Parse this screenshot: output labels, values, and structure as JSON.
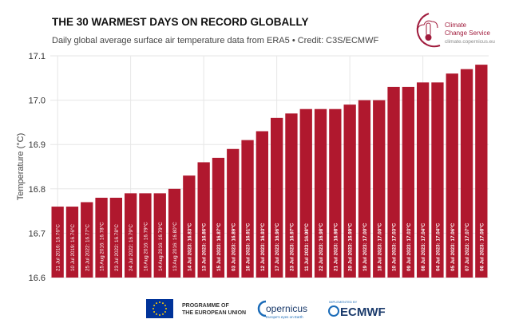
{
  "header": {
    "title": "THE 30 WARMEST DAYS ON RECORD GLOBALLY",
    "subtitle": "Daily global average surface air temperature data from ERA5 • Credit: C3S/ECMWF"
  },
  "logo": {
    "line1": "Climate",
    "line2": "Change Service",
    "url": "climate.copernicus.eu"
  },
  "footer": {
    "eu_line1": "PROGRAMME OF",
    "eu_line2": "THE EUROPEAN UNION",
    "copernicus": "opernicus",
    "copernicus_tag": "Europe's eyes on Earth",
    "ecmwf_tag": "IMPLEMENTED BY",
    "ecmwf": "ECMWF"
  },
  "colors": {
    "bar": "#b0182e",
    "grid": "#e6e6e6"
  },
  "chart_data": {
    "type": "bar",
    "title": "THE 30 WARMEST DAYS ON RECORD GLOBALLY",
    "ylabel": "Temperature (°C)",
    "ylim": [
      16.6,
      17.1
    ],
    "yticks": [
      "16.6",
      "16.7",
      "16.8",
      "16.9",
      "17.0",
      "17.1"
    ],
    "grid": true,
    "categories": [
      "21 Jul 2016",
      "10 Jul 2019",
      "25 Jul 2022",
      "15 Aug 2016",
      "23 Jul 2022",
      "24 Jul 2022",
      "16 Aug 2016",
      "14 Aug 2016",
      "13 Aug 2016",
      "14 Jul 2023",
      "13 Jul 2023",
      "15 Jul 2023",
      "03 Jul 2023",
      "16 Jul 2023",
      "12 Jul 2023",
      "17 Jul 2023",
      "23 Jul 2023",
      "11 Jul 2023",
      "22 Jul 2023",
      "21 Jul 2023",
      "20 Jul 2023",
      "19 Jul 2023",
      "18 Jul 2023",
      "10 Jul 2023",
      "09 Jul 2023",
      "08 Jul 2023",
      "04 Jul 2023",
      "05 Jul 2023",
      "07 Jul 2023",
      "06 Jul 2023"
    ],
    "values": [
      16.76,
      16.76,
      16.77,
      16.78,
      16.78,
      16.79,
      16.79,
      16.79,
      16.8,
      16.83,
      16.86,
      16.87,
      16.89,
      16.91,
      16.93,
      16.96,
      16.97,
      16.98,
      16.98,
      16.98,
      16.99,
      17.0,
      17.0,
      17.03,
      17.03,
      17.04,
      17.04,
      17.06,
      17.07,
      17.08
    ],
    "labels": [
      "21 Jul 2016: 16.76°C",
      "10 Jul 2019: 16.76°C",
      "25 Jul 2022: 16.77°C",
      "15 Aug 2016: 16.78°C",
      "23 Jul 2022: 16.78°C",
      "24 Jul 2022: 16.79°C",
      "16 Aug 2016: 16.79°C",
      "14 Aug 2016: 16.79°C",
      "13 Aug 2016: 16.80°C",
      "14 Jul 2023: 16.83°C",
      "13 Jul 2023: 16.86°C",
      "15 Jul 2023: 16.87°C",
      "03 Jul 2023: 16.89°C",
      "16 Jul 2023: 16.91°C",
      "12 Jul 2023: 16.93°C",
      "17 Jul 2023: 16.96°C",
      "23 Jul 2023: 16.97°C",
      "11 Jul 2023: 16.98°C",
      "22 Jul 2023: 16.98°C",
      "21 Jul 2023: 16.98°C",
      "20 Jul 2023: 16.99°C",
      "19 Jul 2023: 17.00°C",
      "18 Jul 2023: 17.00°C",
      "10 Jul 2023: 17.03°C",
      "09 Jul 2023: 17.03°C",
      "08 Jul 2023: 17.04°C",
      "04 Jul 2023: 17.04°C",
      "05 Jul 2023: 17.06°C",
      "07 Jul 2023: 17.07°C",
      "06 Jul 2023: 17.08°C"
    ],
    "bold_labels_from_year": "2023"
  }
}
